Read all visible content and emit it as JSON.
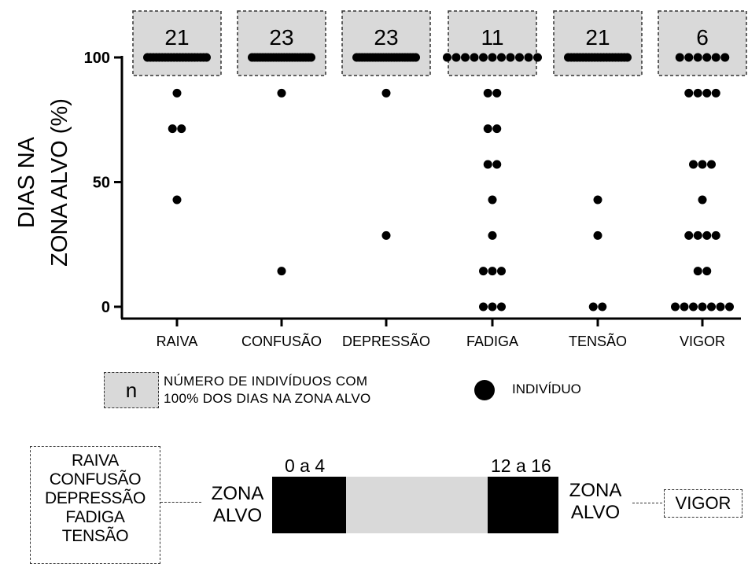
{
  "chart_data": {
    "type": "scatter",
    "ylabel_line1": "DIAS NA",
    "ylabel_line2": "ZONA ALVO (%)",
    "yticks": [
      "0",
      "50",
      "100"
    ],
    "ylim": [
      0,
      100
    ],
    "categories": [
      "RAIVA",
      "CONFUSÃO",
      "DEPRESSÃO",
      "FADIGA",
      "TENSÃO",
      "VIGOR"
    ],
    "n_at_100": [
      21,
      23,
      23,
      11,
      21,
      6
    ],
    "points": [
      {
        "category": "RAIVA",
        "values": [
          85.7,
          71.4,
          71.4,
          42.9
        ]
      },
      {
        "category": "CONFUSÃO",
        "values": [
          85.7,
          14.3
        ]
      },
      {
        "category": "DEPRESSÃO",
        "values": [
          85.7,
          28.6
        ]
      },
      {
        "category": "FADIGA",
        "values": [
          85.7,
          85.7,
          71.4,
          71.4,
          57.1,
          57.1,
          42.9,
          28.6,
          14.3,
          14.3,
          14.3,
          0,
          0,
          0
        ]
      },
      {
        "category": "TENSÃO",
        "values": [
          42.9,
          28.6,
          0,
          0
        ]
      },
      {
        "category": "VIGOR",
        "values": [
          85.7,
          85.7,
          85.7,
          85.7,
          57.1,
          57.1,
          57.1,
          42.9,
          28.6,
          28.6,
          28.6,
          28.6,
          14.3,
          14.3,
          0,
          0,
          0,
          0,
          0,
          0,
          0
        ]
      }
    ]
  },
  "legend": {
    "n_symbol": "n",
    "n_line1": "NÚMERO DE INDIVÍDUOS  COM",
    "n_line2": "100% DOS DIAS NA ZONA ALVO",
    "dot_label": "INDIVÍDUO"
  },
  "scale": {
    "left_list": [
      "RAIVA",
      "CONFUSÃO",
      "DEPRESSÃO",
      "FADIGA",
      "TENSÃO"
    ],
    "zona_left_line1": "ZONA",
    "zona_left_line2": "ALVO",
    "low_range": "0 a 4",
    "high_range": "12 a 16",
    "zona_right_line1": "ZONA",
    "zona_right_line2": "ALVO",
    "right_label": "VIGOR"
  }
}
